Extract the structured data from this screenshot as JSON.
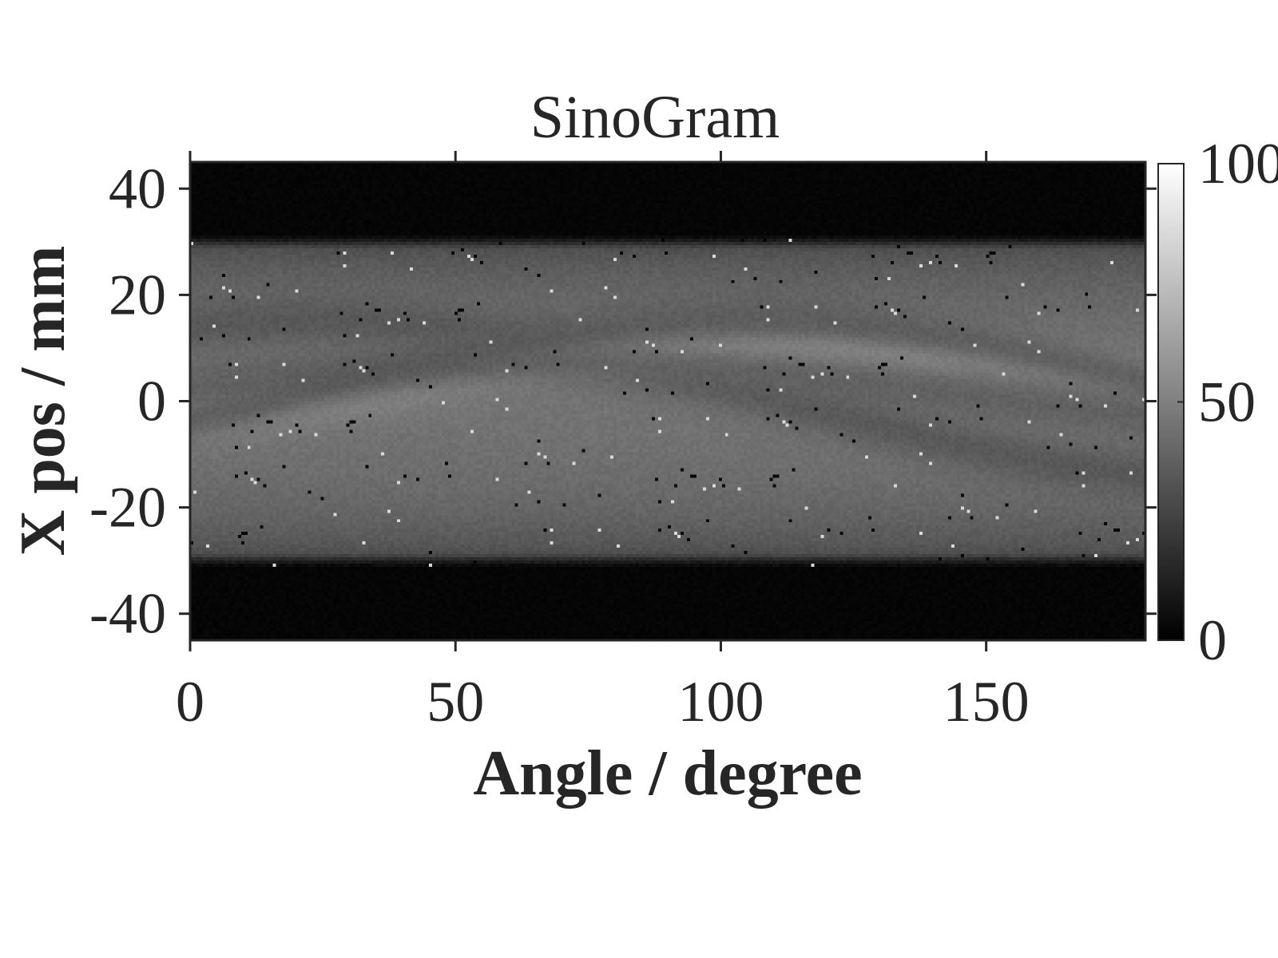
{
  "chart_data": {
    "type": "heatmap",
    "title": "SinoGram",
    "xlabel": "Angle / degree",
    "ylabel": "X pos / mm",
    "xlim": [
      0,
      180
    ],
    "ylim": [
      -45,
      45
    ],
    "xticks": [
      0,
      50,
      100,
      150
    ],
    "xtick_labels": [
      "0",
      "50",
      "100",
      "150"
    ],
    "yticks": [
      -40,
      -20,
      0,
      20,
      40
    ],
    "ytick_labels": [
      "-40",
      "-20",
      "0",
      "20",
      "40"
    ],
    "colormap": "gray",
    "colorbar": {
      "range": [
        0,
        100
      ],
      "ticks": [
        0,
        50,
        100
      ],
      "tick_labels": [
        "0",
        "50",
        "100"
      ]
    },
    "object_radius_mm": 30,
    "background_level": 45,
    "features": [
      {
        "kind": "sinusoidal-trace",
        "amplitude_mm": 15,
        "phase_deg": 22,
        "level": 33
      },
      {
        "kind": "sinusoidal-trace",
        "amplitude_mm": 11,
        "phase_deg": 110,
        "level": 64
      },
      {
        "kind": "sinusoidal-trace",
        "amplitude_mm": 7,
        "phase_deg": 65,
        "level": 37
      },
      {
        "kind": "sinusoidal-trace",
        "amplitude_mm": 15,
        "phase_deg": 105,
        "level": 34
      }
    ],
    "grid": false,
    "noise": "sparse salt-and-pepper pixels"
  },
  "colors": {
    "text": "#262626",
    "axis": "#262626",
    "background": "#ffffff"
  }
}
